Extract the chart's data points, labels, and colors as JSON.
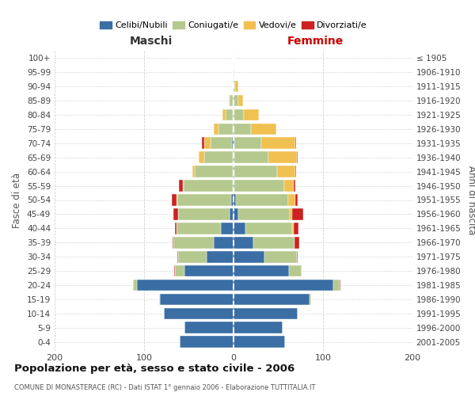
{
  "age_groups": [
    "0-4",
    "5-9",
    "10-14",
    "15-19",
    "20-24",
    "25-29",
    "30-34",
    "35-39",
    "40-44",
    "45-49",
    "50-54",
    "55-59",
    "60-64",
    "65-69",
    "70-74",
    "75-79",
    "80-84",
    "85-89",
    "90-94",
    "95-99",
    "100+"
  ],
  "birth_years": [
    "2001-2005",
    "1996-2000",
    "1991-1995",
    "1986-1990",
    "1981-1985",
    "1976-1980",
    "1971-1975",
    "1966-1970",
    "1961-1965",
    "1956-1960",
    "1951-1955",
    "1946-1950",
    "1941-1945",
    "1936-1940",
    "1931-1935",
    "1926-1930",
    "1921-1925",
    "1916-1920",
    "1911-1915",
    "1906-1910",
    "≤ 1905"
  ],
  "males_celibe": [
    60,
    55,
    78,
    82,
    108,
    55,
    30,
    22,
    14,
    4,
    3,
    1,
    1,
    1,
    2,
    1,
    1,
    1,
    0,
    0,
    0
  ],
  "males_coniugato": [
    0,
    0,
    0,
    1,
    4,
    10,
    32,
    45,
    50,
    58,
    60,
    55,
    42,
    32,
    24,
    16,
    8,
    3,
    1,
    0,
    0
  ],
  "males_vedovo": [
    0,
    0,
    0,
    0,
    0,
    0,
    0,
    0,
    0,
    0,
    1,
    1,
    3,
    6,
    7,
    5,
    3,
    1,
    0,
    0,
    0
  ],
  "males_divorziato": [
    0,
    0,
    0,
    0,
    0,
    1,
    1,
    1,
    1,
    5,
    5,
    4,
    0,
    0,
    2,
    0,
    0,
    0,
    0,
    0,
    0
  ],
  "females_nubile": [
    58,
    55,
    72,
    85,
    112,
    62,
    35,
    22,
    13,
    5,
    3,
    1,
    1,
    1,
    1,
    0,
    0,
    0,
    0,
    0,
    0
  ],
  "females_coniugata": [
    0,
    0,
    0,
    2,
    7,
    14,
    36,
    46,
    53,
    58,
    58,
    56,
    48,
    38,
    30,
    20,
    12,
    5,
    2,
    0,
    0
  ],
  "females_vedova": [
    0,
    0,
    0,
    0,
    0,
    0,
    0,
    0,
    1,
    3,
    8,
    10,
    20,
    32,
    38,
    28,
    16,
    6,
    3,
    1,
    0
  ],
  "females_divorziata": [
    0,
    0,
    0,
    0,
    1,
    0,
    1,
    6,
    6,
    12,
    3,
    2,
    1,
    1,
    1,
    0,
    0,
    0,
    0,
    0,
    0
  ],
  "color_celibe": "#3a6ea5",
  "color_coniugato": "#b5c98e",
  "color_vedovo": "#f0c050",
  "color_divorziato": "#cc2222",
  "title_main": "Popolazione per età, sesso e stato civile - 2006",
  "title_sub": "COMUNE DI MONASTERACE (RC) - Dati ISTAT 1° gennaio 2006 - Elaborazione TUTTITALIA.IT",
  "maschi_label": "Maschi",
  "femmine_label": "Femmine",
  "ylabel_left": "Fasce di età",
  "ylabel_right": "Anni di nascita",
  "xlim": 200,
  "legend_labels": [
    "Celibi/Nubili",
    "Coniugati/e",
    "Vedovi/e",
    "Divorziati/e"
  ],
  "background_color": "#ffffff",
  "grid_color": "#cccccc"
}
